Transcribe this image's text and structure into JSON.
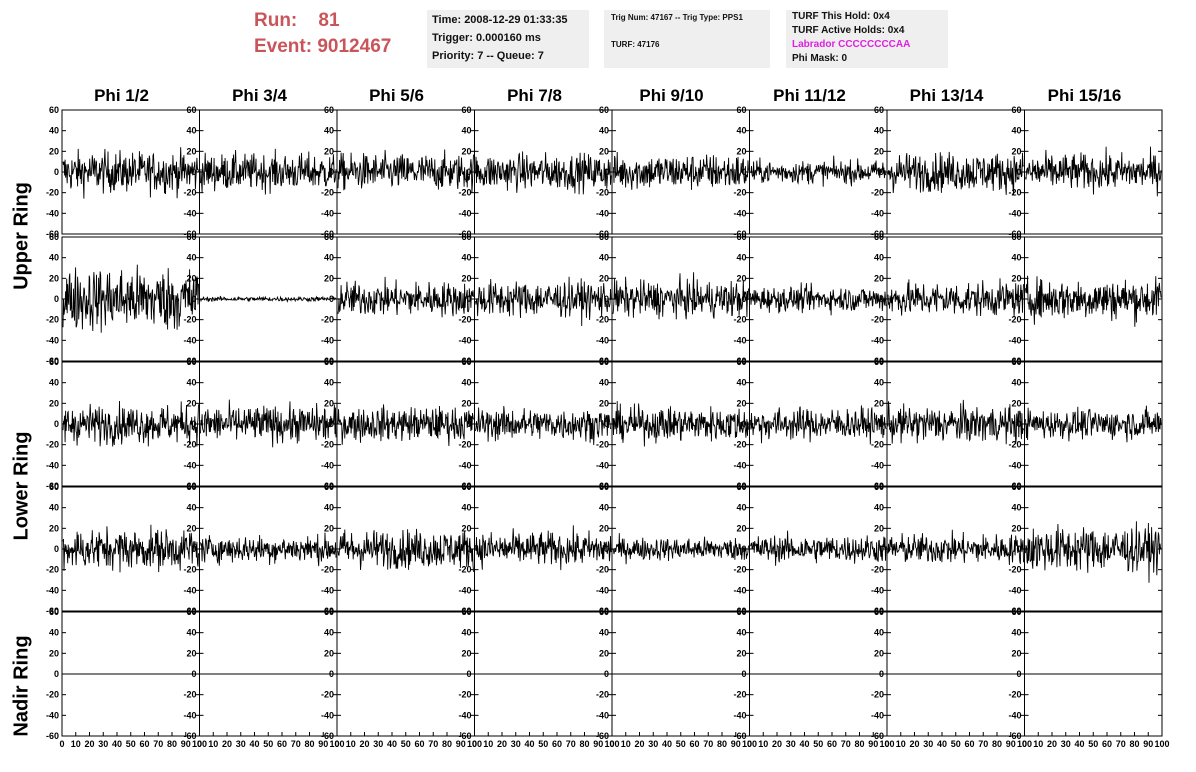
{
  "header": {
    "run_label": "Run:",
    "run_value": "81",
    "event_label": "Event:",
    "event_value": "9012467"
  },
  "info_time": {
    "time": "Time: 2008-12-29 01:33:35",
    "trigger": "Trigger: 0.000160 ms",
    "priority": "Priority: 7 -- Queue: 7"
  },
  "info_trig": {
    "trig": "Trig Num: 47167 -- Trig Type: PPS1",
    "turf": "TURF: 47176"
  },
  "info_turf": {
    "this_hold": "TURF This Hold: 0x4",
    "active_holds": "TURF Active Holds: 0x4",
    "labrador": "Labrador CCCCCCCCAA",
    "phi_mask": "Phi Mask: 0"
  },
  "phi_columns": [
    "Phi 1/2",
    "Phi 3/4",
    "Phi 5/6",
    "Phi 7/8",
    "Phi 9/10",
    "Phi 11/12",
    "Phi 13/14",
    "Phi 15/16"
  ],
  "ring_labels": {
    "upper": "Upper Ring",
    "lower": "Lower Ring",
    "nadir": "Nadir Ring"
  },
  "axes": {
    "y_ticks": [
      "60",
      "40",
      "20",
      "0",
      "-20",
      "-40",
      "-60"
    ],
    "x_ticks": [
      "0",
      "10",
      "20",
      "30",
      "40",
      "50",
      "60",
      "70",
      "80",
      "90",
      "100"
    ],
    "ylim": [
      -60,
      60
    ],
    "xlim": [
      0,
      100
    ]
  },
  "colors": {
    "trace": "#000000",
    "run": "#c9555a",
    "labrador": "#e020e0",
    "infobox": "#efefef"
  },
  "chart_data": {
    "type": "line",
    "description_rows": [
      "Upper Ring",
      "Upper Ring",
      "Lower Ring",
      "Lower Ring",
      "Nadir Ring"
    ],
    "amplitudes": [
      [
        18,
        16,
        16,
        16,
        16,
        10,
        17,
        16
      ],
      [
        28,
        2,
        15,
        16,
        16,
        11,
        15,
        18
      ],
      [
        17,
        16,
        15,
        14,
        15,
        14,
        16,
        13
      ],
      [
        18,
        12,
        17,
        15,
        10,
        12,
        13,
        20
      ],
      [
        0,
        0,
        0,
        0,
        0,
        0,
        0,
        0
      ]
    ],
    "samples_per_trace": 260
  }
}
